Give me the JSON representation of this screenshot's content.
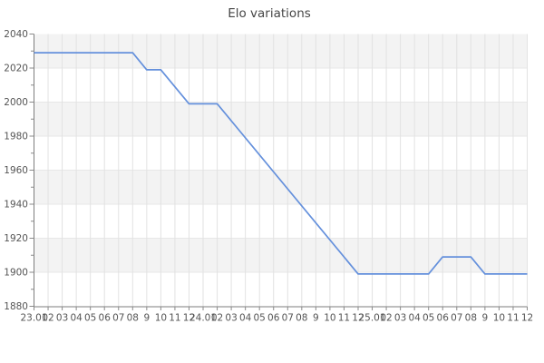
{
  "chart_data": {
    "type": "line",
    "title": "Elo variations",
    "xlabel": "",
    "ylabel": "",
    "ylim": [
      1880,
      2040
    ],
    "y_ticks": [
      2040,
      2020,
      2000,
      1980,
      1960,
      1940,
      1920,
      1900,
      1880
    ],
    "y_minor_tick_step": 10,
    "x_labels": [
      "23.01",
      "02",
      "03",
      "04",
      "05",
      "06",
      "07",
      "08",
      "9",
      "10",
      "11",
      "12",
      "24.01",
      "02",
      "03",
      "04",
      "05",
      "06",
      "07",
      "08",
      "9",
      "10",
      "11",
      "12",
      "25.01",
      "02",
      "03",
      "04",
      "05",
      "06",
      "07",
      "08",
      "9",
      "10",
      "11",
      "12"
    ],
    "grid": {
      "vertical": true,
      "horizontal": true,
      "alternating_bands": true
    },
    "legend": "none",
    "markers": "none",
    "series": [
      {
        "name": "Elo",
        "color": "#6490dc",
        "points": [
          {
            "x_index": 0,
            "x_label": "23.01",
            "value": 2029
          },
          {
            "x_index": 7,
            "x_label": "08",
            "value": 2029
          },
          {
            "x_index": 8,
            "x_label": "9",
            "value": 2019
          },
          {
            "x_index": 9,
            "x_label": "10",
            "value": 2019
          },
          {
            "x_index": 11,
            "x_label": "12",
            "value": 1999
          },
          {
            "x_index": 13,
            "x_label": "02",
            "value": 1999
          },
          {
            "x_index": 23,
            "x_label": "12",
            "value": 1899
          },
          {
            "x_index": 28,
            "x_label": "05",
            "value": 1899
          },
          {
            "x_index": 29,
            "x_label": "06",
            "value": 1909
          },
          {
            "x_index": 31,
            "x_label": "08",
            "value": 1909
          },
          {
            "x_index": 32,
            "x_label": "9",
            "value": 1899
          },
          {
            "x_index": 35,
            "x_label": "12",
            "value": 1899
          }
        ]
      }
    ]
  },
  "style": {
    "line_color": "#6490dc",
    "band_color": "#f3f3f3",
    "band_alt_color": "#ffffff",
    "vgrid_color": "#e2e2e2",
    "hgrid_color": "#e7e7e7",
    "spine_color": "#7d7d7d",
    "tick_color": "#8a8a8a",
    "label_color": "#555555",
    "title_color": "#454545",
    "background_color": "#ffffff"
  }
}
